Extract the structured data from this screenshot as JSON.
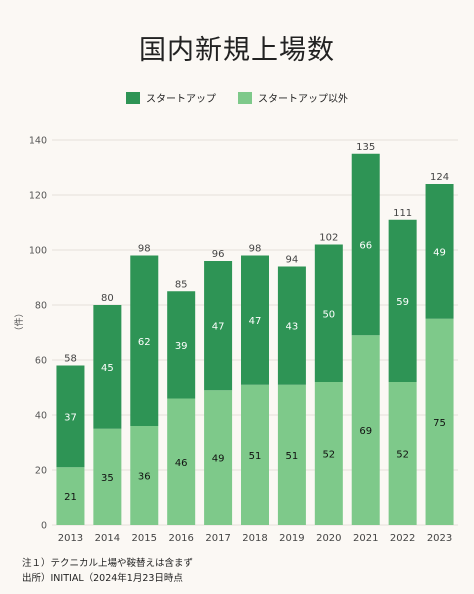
{
  "title": "国内新規上場数",
  "legend": [
    {
      "label": "スタートアップ",
      "color": "#2e9455"
    },
    {
      "label": "スタートアップ以外",
      "color": "#7ec98a"
    }
  ],
  "chart_data": {
    "type": "bar",
    "stacked": true,
    "title": "国内新規上場数",
    "ylabel": "（件）",
    "ylim": [
      0,
      140
    ],
    "yticks": [
      0,
      20,
      40,
      60,
      80,
      100,
      120,
      140
    ],
    "categories": [
      "2013",
      "2014",
      "2015",
      "2016",
      "2017",
      "2018",
      "2019",
      "2020",
      "2021",
      "2022",
      "2023"
    ],
    "series": [
      {
        "name": "スタートアップ以外",
        "color": "#7ec98a",
        "values": [
          21,
          35,
          36,
          46,
          49,
          51,
          51,
          52,
          69,
          52,
          75
        ]
      },
      {
        "name": "スタートアップ",
        "color": "#2e9455",
        "values": [
          37,
          45,
          62,
          39,
          47,
          47,
          43,
          50,
          66,
          59,
          49
        ]
      }
    ],
    "totals": [
      58,
      80,
      98,
      85,
      96,
      98,
      94,
      102,
      135,
      111,
      124
    ],
    "grid": true,
    "legend_position": "top"
  },
  "notes": [
    "注１）テクニカル上場や鞍替えは含まず",
    "出所）INITIAL（2024年1月23日時点"
  ]
}
